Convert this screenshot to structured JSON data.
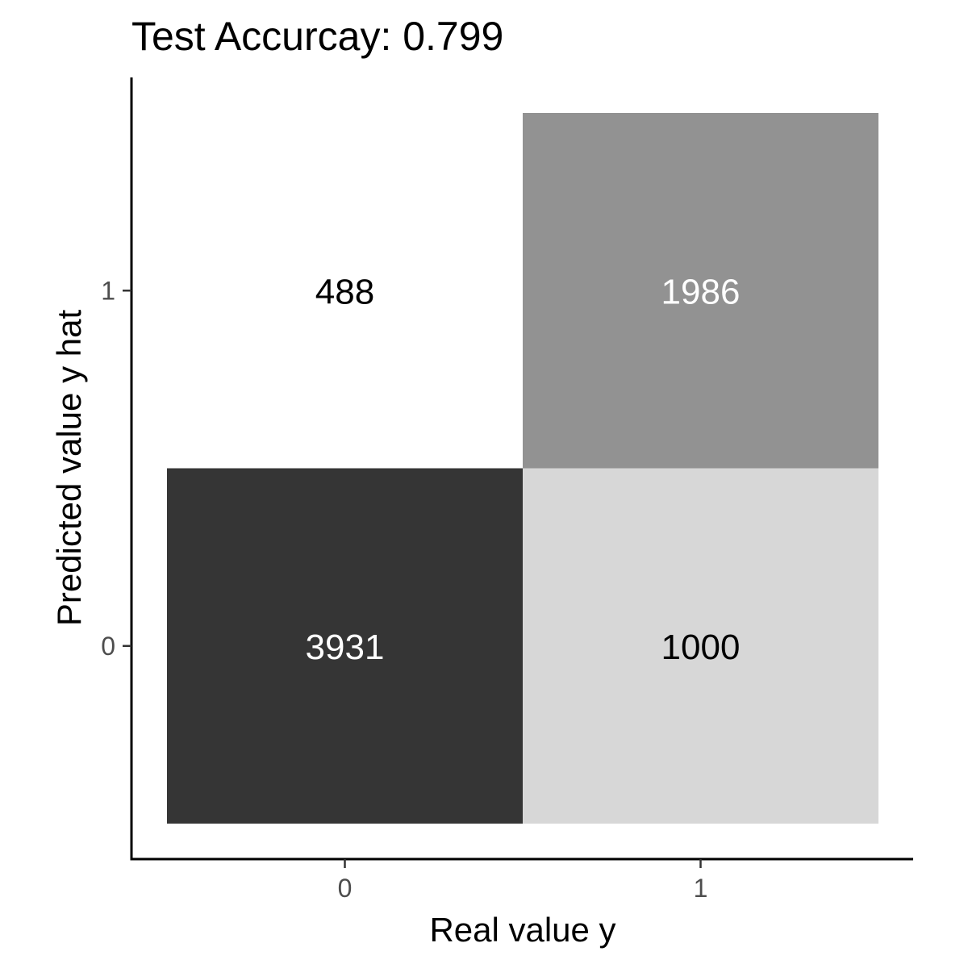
{
  "chart_data": {
    "type": "heatmap",
    "title": "Test Accurcay: 0.799",
    "xlabel": "Real value y",
    "ylabel": "Predicted value y hat",
    "x_categories": [
      "0",
      "1"
    ],
    "y_categories": [
      "0",
      "1"
    ],
    "cells": [
      {
        "x": "0",
        "y": "1",
        "value": 488,
        "fill": "#ffffff",
        "text_color": "#000000"
      },
      {
        "x": "1",
        "y": "1",
        "value": 1986,
        "fill": "#929292",
        "text_color": "#ffffff"
      },
      {
        "x": "0",
        "y": "0",
        "value": 3931,
        "fill": "#353535",
        "text_color": "#ffffff"
      },
      {
        "x": "1",
        "y": "0",
        "value": 1000,
        "fill": "#d7d7d7",
        "text_color": "#000000"
      }
    ],
    "legend": "none",
    "grid": false
  }
}
